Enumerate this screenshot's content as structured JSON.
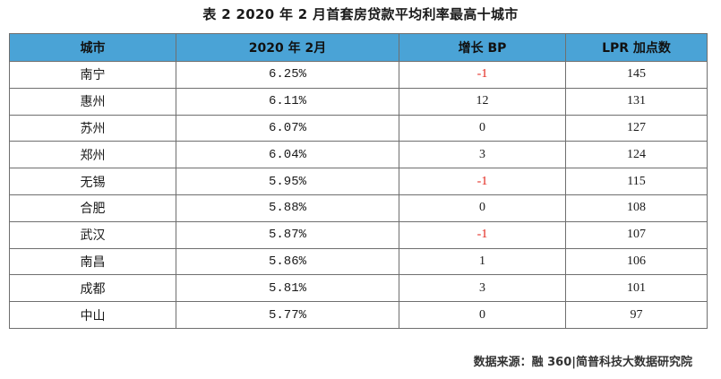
{
  "title": "表 2  2020 年 2 月首套房贷款平均利率最高十城市",
  "table": {
    "headers": [
      "城市",
      "2020 年 2月",
      "增长 BP",
      "LPR 加点数"
    ],
    "rows": [
      {
        "city": "南宁",
        "rate": "6.25%",
        "growth": "-1",
        "lpr": "145"
      },
      {
        "city": "惠州",
        "rate": "6.11%",
        "growth": "12",
        "lpr": "131"
      },
      {
        "city": "苏州",
        "rate": "6.07%",
        "growth": "0",
        "lpr": "127"
      },
      {
        "city": "郑州",
        "rate": "6.04%",
        "growth": "3",
        "lpr": "124"
      },
      {
        "city": "无锡",
        "rate": "5.95%",
        "growth": "-1",
        "lpr": "115"
      },
      {
        "city": "合肥",
        "rate": "5.88%",
        "growth": "0",
        "lpr": "108"
      },
      {
        "city": "武汉",
        "rate": "5.87%",
        "growth": "-1",
        "lpr": "107"
      },
      {
        "city": "南昌",
        "rate": "5.86%",
        "growth": "1",
        "lpr": "106"
      },
      {
        "city": "成都",
        "rate": "5.81%",
        "growth": "3",
        "lpr": "101"
      },
      {
        "city": "中山",
        "rate": "5.77%",
        "growth": "0",
        "lpr": "97"
      }
    ]
  },
  "source": "数据来源：融 360|简普科技大数据研究院",
  "colors": {
    "header_background": "#4aa3d6",
    "negative_growth": "#e2231a",
    "border": "#6f6f6f"
  }
}
